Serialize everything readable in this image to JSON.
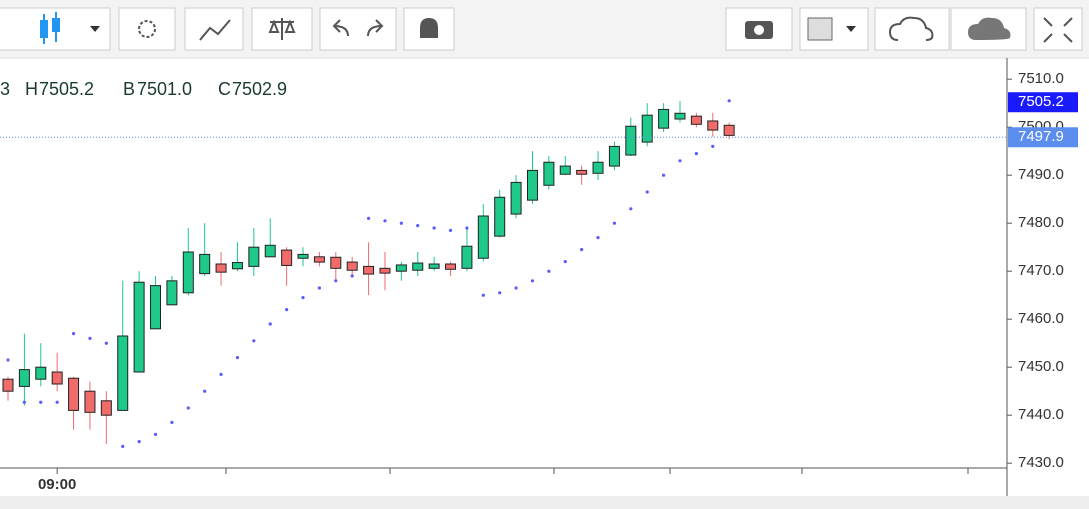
{
  "chart_data": {
    "type": "candlestick",
    "readout": [
      {
        "label": "3"
      },
      {
        "label": "H",
        "value": "7505.2"
      },
      {
        "label": "B",
        "value": "7501.0"
      },
      {
        "label": "C",
        "value": "7502.9"
      }
    ],
    "categories": [
      null,
      null,
      null,
      "09:00",
      null,
      null,
      null,
      null,
      null,
      null,
      null,
      null,
      null,
      null,
      null,
      null,
      null,
      null,
      null,
      null,
      null,
      null,
      null,
      null,
      null,
      null,
      null,
      null,
      null,
      null,
      null,
      null,
      null,
      null,
      null,
      null,
      null,
      null,
      null,
      null,
      null,
      null,
      null,
      null,
      null
    ],
    "open": [
      7447.5,
      7446,
      7447.5,
      7449,
      7447.7,
      7445,
      7443,
      7441,
      7449,
      7458,
      7463,
      7465.5,
      7469.5,
      7471.5,
      7470.5,
      7471,
      7473,
      7474.4,
      7472.7,
      7473,
      7472.9,
      7471.9,
      7471,
      7470.6,
      7470,
      7470.2,
      7470.6,
      7471.5,
      7470.6,
      7472.7,
      7477.3,
      7481.9,
      7484.8,
      7487.9,
      7490.2,
      7491,
      7490.4,
      7491.9,
      7494.2,
      7496.9,
      7499.8,
      7501.7,
      7502.3,
      7501.3,
      7500.4
    ],
    "high": [
      7448,
      7457,
      7455,
      7453,
      7448,
      7447,
      7445,
      7468,
      7470,
      7469,
      7469,
      7479,
      7480,
      7474,
      7476,
      7479,
      7481,
      7475,
      7475,
      7474,
      7474,
      7473,
      7476,
      7474,
      7472,
      7474,
      7473,
      7472,
      7479,
      7484,
      7487,
      7490,
      7495,
      7494,
      7494,
      7492,
      7495,
      7497,
      7502,
      7505,
      7505,
      7505.5,
      7503,
      7503,
      7501
    ],
    "low": [
      7443,
      7442,
      7446,
      7445,
      7437,
      7437,
      7434,
      7441,
      7449,
      7458,
      7463,
      7465,
      7469,
      7467,
      7470,
      7469,
      7473,
      7467,
      7471,
      7471,
      7468,
      7469,
      7465,
      7466,
      7468,
      7469,
      7470,
      7469,
      7470,
      7472,
      7477,
      7481,
      7484,
      7487,
      7490,
      7488,
      7489,
      7491,
      7494,
      7496,
      7499,
      7501,
      7500,
      7498,
      7497.5
    ],
    "close": [
      7445,
      7449.5,
      7450,
      7446.5,
      7441,
      7440.6,
      7440,
      7456.5,
      7467.7,
      7467,
      7468,
      7474,
      7473.5,
      7469.8,
      7471.8,
      7475,
      7475.4,
      7471.2,
      7473.5,
      7471.9,
      7470.6,
      7470.2,
      7469.4,
      7469.6,
      7471.3,
      7471.7,
      7471.5,
      7470.4,
      7475.2,
      7481.5,
      7485.4,
      7488.5,
      7491,
      7492.7,
      7491.9,
      7490.2,
      7492.7,
      7496,
      7500.2,
      7502.5,
      7503.7,
      7502.9,
      7500.6,
      7499.4,
      7498.3
    ],
    "up_color": "#1ec98a",
    "down_color": "#f26b6b",
    "overlay": {
      "type": "scatter",
      "color": "#5b5bff",
      "values": [
        7451.5,
        7442.7,
        7442.7,
        7442.7,
        7457,
        7456,
        7455,
        7433.5,
        7434.5,
        7436,
        7438.5,
        7441.5,
        7445,
        7448.5,
        7452,
        7455.5,
        7459,
        7462,
        7464.5,
        7466.5,
        7468,
        7469,
        7481,
        7480.5,
        7480,
        7479.5,
        7479,
        7478.5,
        7479,
        7465,
        7465.5,
        7466.5,
        7468,
        7470,
        7472,
        7474.5,
        7477,
        7480,
        7483,
        7486.5,
        7490,
        7493,
        7494.5,
        7496,
        7505.5
      ]
    },
    "price_labels": [
      {
        "value": 7505.2,
        "label": "7505.2",
        "color": "#1a1aff"
      },
      {
        "value": 7497.9,
        "label": "7497.9",
        "color": "#5b8def"
      }
    ],
    "ylim": [
      7429,
      7514
    ],
    "yticks": [
      {
        "value": 7430,
        "label": "7430.0"
      },
      {
        "value": 7440,
        "label": "7440.0"
      },
      {
        "value": 7450,
        "label": "7450.0"
      },
      {
        "value": 7460,
        "label": "7460.0"
      },
      {
        "value": 7470,
        "label": "7470.0"
      },
      {
        "value": 7480,
        "label": "7480.0"
      },
      {
        "value": 7490,
        "label": "7490.0"
      },
      {
        "value": 7500,
        "label": "7500.0"
      },
      {
        "value": 7510,
        "label": "7510.0"
      }
    ]
  }
}
